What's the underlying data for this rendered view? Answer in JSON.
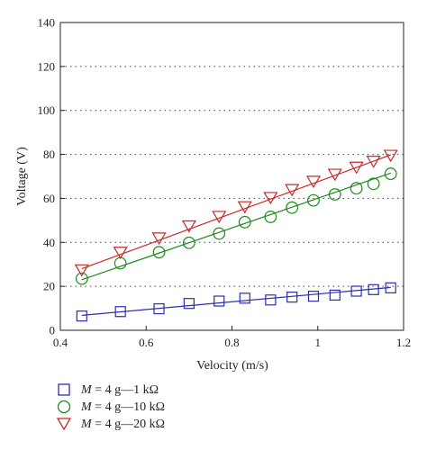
{
  "chart_data": {
    "type": "line",
    "xlabel": "Velocity (m/s)",
    "ylabel": "Voltage (V)",
    "xlim": [
      0.4,
      1.2
    ],
    "ylim": [
      0,
      140
    ],
    "xticks": [
      "0.4",
      "0.6",
      "0.8",
      "1",
      "1.2"
    ],
    "yticks": [
      "0",
      "20",
      "40",
      "60",
      "80",
      "100",
      "120",
      "140"
    ],
    "grid": "horizontal dotted",
    "legend_position": "below",
    "series": [
      {
        "name": "M = 4 g—1 kΩ",
        "marker": "square",
        "color": "#2c2cb4",
        "x": [
          0.45,
          0.54,
          0.63,
          0.7,
          0.77,
          0.83,
          0.89,
          0.94,
          0.99,
          1.04,
          1.09,
          1.13,
          1.17
        ],
        "y": [
          6.5,
          8.5,
          9.8,
          12.2,
          13.3,
          14.6,
          13.8,
          15.1,
          15.5,
          16.0,
          17.8,
          18.5,
          19.3
        ],
        "fit": [
          [
            0.45,
            6.8
          ],
          [
            1.17,
            19.5
          ]
        ]
      },
      {
        "name": "M = 4 g—10 kΩ",
        "marker": "circle",
        "color": "#1f8a1f",
        "x": [
          0.45,
          0.54,
          0.63,
          0.7,
          0.77,
          0.83,
          0.89,
          0.94,
          0.99,
          1.04,
          1.09,
          1.13,
          1.17
        ],
        "y": [
          23.5,
          30.5,
          35.5,
          39.8,
          44.0,
          49.2,
          51.6,
          55.8,
          59.1,
          61.8,
          64.6,
          66.6,
          71.2
        ],
        "fit": [
          [
            0.45,
            23.0
          ],
          [
            1.17,
            71.5
          ]
        ]
      },
      {
        "name": "M = 4 g—20 kΩ",
        "marker": "triangle-down",
        "color": "#c8282a",
        "x": [
          0.45,
          0.54,
          0.63,
          0.7,
          0.77,
          0.83,
          0.89,
          0.94,
          0.99,
          1.04,
          1.09,
          1.13,
          1.17
        ],
        "y": [
          27.5,
          35.5,
          42.0,
          47.5,
          51.8,
          56.2,
          60.4,
          64.0,
          67.8,
          71.0,
          74.2,
          76.9,
          79.6
        ],
        "fit": [
          [
            0.45,
            28.0
          ],
          [
            1.17,
            79.8
          ]
        ]
      }
    ]
  },
  "legend": {
    "items": [
      {
        "prefix": "M",
        "rest": " = 4 g—1 kΩ"
      },
      {
        "prefix": "M",
        "rest": " = 4 g—10 kΩ"
      },
      {
        "prefix": "M",
        "rest": " = 4 g—20 kΩ"
      }
    ]
  }
}
